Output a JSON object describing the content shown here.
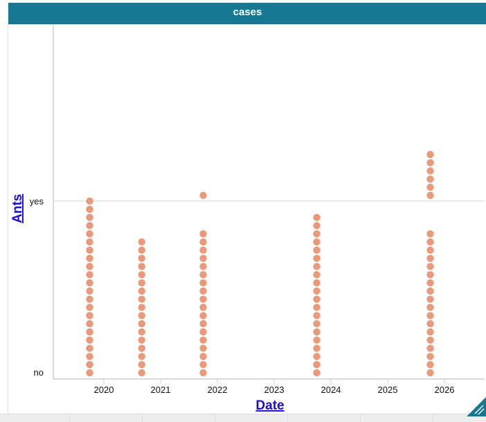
{
  "window": {
    "title": "cases"
  },
  "chart_data": {
    "type": "scatter",
    "subtype": "stacked-dot-plot",
    "xlabel": "Date",
    "ylabel": "Ants",
    "x_ticks": [
      "2020",
      "2021",
      "2022",
      "2023",
      "2024",
      "2025",
      "2026"
    ],
    "y_categories": [
      "no",
      "yes"
    ],
    "dot_color": "#ea9a7b",
    "grid": false,
    "columns": [
      {
        "x": "2019-10",
        "no": 22,
        "yes": 0
      },
      {
        "x": "2020-09",
        "no": 17,
        "yes": 0
      },
      {
        "x": "2021-10",
        "no": 18,
        "yes": 1
      },
      {
        "x": "2023-10",
        "no": 20,
        "yes": 0
      },
      {
        "x": "2025-10",
        "no": 18,
        "yes": 6
      }
    ]
  },
  "colors": {
    "titlebar": "#177991",
    "axis_title": "#1a0dd6",
    "dots": "#ea9a7b"
  }
}
